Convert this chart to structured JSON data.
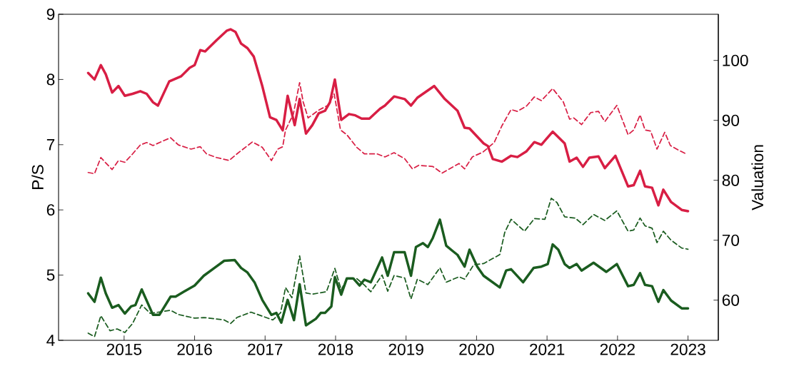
{
  "chart_data": {
    "type": "line",
    "ylabel": "P/S",
    "y2label": "Valuation",
    "xlim": [
      2014.07,
      2023.43
    ],
    "xticks": [
      2015,
      2016,
      2017,
      2018,
      2019,
      2020,
      2021,
      2022,
      2023
    ],
    "ylim": [
      4,
      9
    ],
    "yticks": [
      4,
      5,
      6,
      7,
      8,
      9
    ],
    "y2lim": [
      53.3,
      107.7
    ],
    "y2ticks": [
      60,
      70,
      80,
      90,
      100
    ],
    "series": [
      {
        "color": "#d81e44",
        "line_style": "solid",
        "axis": "y",
        "x": [
          2014.49,
          2014.58,
          2014.67,
          2014.74,
          2014.83,
          2014.92,
          2015.01,
          2015.12,
          2015.23,
          2015.32,
          2015.41,
          2015.48,
          2015.64,
          2015.81,
          2015.93,
          2016.0,
          2016.08,
          2016.15,
          2016.31,
          2016.46,
          2016.51,
          2016.58,
          2016.66,
          2016.75,
          2016.84,
          2016.96,
          2017.07,
          2017.16,
          2017.25,
          2017.32,
          2017.42,
          2017.49,
          2017.58,
          2017.67,
          2017.76,
          2017.85,
          2017.92,
          2017.99,
          2018.08,
          2018.19,
          2018.28,
          2018.37,
          2018.48,
          2018.63,
          2018.7,
          2018.83,
          2018.98,
          2019.07,
          2019.16,
          2019.4,
          2019.55,
          2019.73,
          2019.83,
          2019.9,
          2020.1,
          2020.16,
          2020.23,
          2020.36,
          2020.49,
          2020.58,
          2020.71,
          2020.82,
          2020.92,
          2021.08,
          2021.25,
          2021.32,
          2021.42,
          2021.51,
          2021.6,
          2021.73,
          2021.82,
          2021.97,
          2022.15,
          2022.23,
          2022.32,
          2022.39,
          2022.49,
          2022.58,
          2022.65,
          2022.76,
          2022.91,
          2023.0
        ],
        "values": [
          8.1,
          8.0,
          8.22,
          8.08,
          7.8,
          7.9,
          7.75,
          7.78,
          7.82,
          7.78,
          7.65,
          7.6,
          7.97,
          8.05,
          8.18,
          8.22,
          8.45,
          8.43,
          8.6,
          8.75,
          8.77,
          8.73,
          8.55,
          8.48,
          8.35,
          7.9,
          7.42,
          7.38,
          7.22,
          7.75,
          7.3,
          7.7,
          7.17,
          7.3,
          7.48,
          7.52,
          7.65,
          8.0,
          7.38,
          7.47,
          7.45,
          7.4,
          7.4,
          7.55,
          7.6,
          7.74,
          7.7,
          7.6,
          7.72,
          7.9,
          7.7,
          7.52,
          7.26,
          7.25,
          7.02,
          6.98,
          6.78,
          6.74,
          6.83,
          6.81,
          6.9,
          7.04,
          7.0,
          7.2,
          7.02,
          6.74,
          6.8,
          6.66,
          6.8,
          6.82,
          6.64,
          6.83,
          6.36,
          6.38,
          6.6,
          6.36,
          6.34,
          6.07,
          6.31,
          6.12,
          6.0,
          5.98
        ]
      },
      {
        "color": "#d81e44",
        "line_style": "dashed",
        "axis": "y2",
        "x": [
          2014.49,
          2014.58,
          2014.67,
          2014.74,
          2014.83,
          2014.92,
          2015.01,
          2015.12,
          2015.23,
          2015.32,
          2015.41,
          2015.52,
          2015.66,
          2015.77,
          2015.95,
          2016.08,
          2016.17,
          2016.31,
          2016.49,
          2016.6,
          2016.82,
          2016.96,
          2017.09,
          2017.18,
          2017.25,
          2017.29,
          2017.4,
          2017.49,
          2017.54,
          2017.61,
          2017.76,
          2017.89,
          2017.98,
          2018.07,
          2018.16,
          2018.3,
          2018.41,
          2018.59,
          2018.7,
          2018.83,
          2018.98,
          2019.09,
          2019.18,
          2019.38,
          2019.51,
          2019.75,
          2019.83,
          2019.94,
          2020.09,
          2020.25,
          2020.36,
          2020.49,
          2020.58,
          2020.71,
          2020.82,
          2020.92,
          2021.08,
          2021.23,
          2021.32,
          2021.38,
          2021.49,
          2021.62,
          2021.73,
          2021.82,
          2021.99,
          2022.15,
          2022.23,
          2022.32,
          2022.39,
          2022.47,
          2022.56,
          2022.67,
          2022.75,
          2022.87,
          2022.99
        ],
        "values": [
          81.3,
          81.1,
          83.8,
          82.9,
          81.8,
          83.3,
          83.0,
          84.4,
          85.9,
          86.3,
          85.8,
          86.4,
          87.1,
          85.9,
          85.2,
          85.6,
          84.4,
          83.8,
          83.3,
          84.4,
          86.4,
          85.5,
          83.3,
          85.2,
          85.6,
          88.4,
          91.0,
          96.3,
          93.1,
          90.4,
          91.7,
          92.5,
          94.4,
          88.4,
          87.6,
          85.5,
          84.4,
          84.4,
          83.9,
          84.6,
          83.6,
          81.9,
          82.5,
          82.3,
          81.2,
          82.8,
          81.9,
          83.9,
          84.7,
          86.3,
          89.1,
          91.8,
          91.5,
          92.4,
          93.9,
          93.3,
          95.3,
          93.1,
          90.2,
          90.4,
          89.3,
          91.3,
          91.5,
          89.8,
          92.5,
          87.6,
          88.4,
          90.9,
          88.4,
          88.2,
          85.2,
          88.0,
          85.8,
          85.0,
          84.3
        ]
      },
      {
        "color": "#1a5c1f",
        "line_style": "solid",
        "axis": "y",
        "x": [
          2014.49,
          2014.58,
          2014.67,
          2014.74,
          2014.83,
          2014.92,
          2015.01,
          2015.1,
          2015.16,
          2015.25,
          2015.41,
          2015.5,
          2015.66,
          2015.73,
          2015.84,
          2016.0,
          2016.13,
          2016.28,
          2016.42,
          2016.57,
          2016.66,
          2016.75,
          2016.85,
          2016.96,
          2017.09,
          2017.16,
          2017.23,
          2017.32,
          2017.41,
          2017.49,
          2017.58,
          2017.72,
          2017.79,
          2017.85,
          2017.94,
          2017.99,
          2018.08,
          2018.16,
          2018.25,
          2018.34,
          2018.41,
          2018.5,
          2018.66,
          2018.74,
          2018.83,
          2018.98,
          2019.07,
          2019.14,
          2019.24,
          2019.31,
          2019.38,
          2019.48,
          2019.57,
          2019.66,
          2019.73,
          2019.83,
          2019.9,
          2020.01,
          2020.1,
          2020.33,
          2020.42,
          2020.49,
          2020.66,
          2020.81,
          2020.92,
          2021.01,
          2021.08,
          2021.16,
          2021.25,
          2021.32,
          2021.42,
          2021.49,
          2021.66,
          2021.84,
          2021.99,
          2022.15,
          2022.23,
          2022.32,
          2022.39,
          2022.49,
          2022.58,
          2022.65,
          2022.76,
          2022.91,
          2023.0
        ],
        "values": [
          4.72,
          4.59,
          4.96,
          4.72,
          4.5,
          4.54,
          4.41,
          4.52,
          4.54,
          4.78,
          4.39,
          4.39,
          4.67,
          4.67,
          4.74,
          4.84,
          4.99,
          5.11,
          5.22,
          5.23,
          5.11,
          5.04,
          4.89,
          4.62,
          4.39,
          4.42,
          4.27,
          4.62,
          4.31,
          4.86,
          4.23,
          4.33,
          4.42,
          4.42,
          4.52,
          4.97,
          4.7,
          4.95,
          4.95,
          4.84,
          4.93,
          4.89,
          5.27,
          4.99,
          5.35,
          5.35,
          4.99,
          5.43,
          5.49,
          5.43,
          5.57,
          5.85,
          5.45,
          5.37,
          5.31,
          5.13,
          5.39,
          5.13,
          4.99,
          4.81,
          5.07,
          5.09,
          4.89,
          5.11,
          5.13,
          5.17,
          5.47,
          5.39,
          5.17,
          5.11,
          5.17,
          5.07,
          5.19,
          5.05,
          5.17,
          4.83,
          4.85,
          5.03,
          4.85,
          4.83,
          4.59,
          4.77,
          4.61,
          4.49,
          4.49
        ]
      },
      {
        "color": "#1a5c1f",
        "line_style": "dashed",
        "axis": "y2",
        "x": [
          2014.49,
          2014.58,
          2014.67,
          2014.8,
          2014.9,
          2015.01,
          2015.12,
          2015.25,
          2015.37,
          2015.66,
          2015.77,
          2016.0,
          2016.13,
          2016.42,
          2016.51,
          2016.6,
          2016.8,
          2017.11,
          2017.22,
          2017.29,
          2017.38,
          2017.49,
          2017.58,
          2017.67,
          2017.87,
          2017.99,
          2018.08,
          2018.16,
          2018.3,
          2018.41,
          2018.5,
          2018.66,
          2018.74,
          2018.83,
          2018.98,
          2019.07,
          2019.16,
          2019.31,
          2019.48,
          2019.57,
          2019.75,
          2019.83,
          2019.96,
          2020.1,
          2020.33,
          2020.4,
          2020.49,
          2020.68,
          2020.82,
          2020.97,
          2021.06,
          2021.14,
          2021.25,
          2021.4,
          2021.51,
          2021.66,
          2021.82,
          2021.99,
          2022.15,
          2022.23,
          2022.32,
          2022.39,
          2022.49,
          2022.56,
          2022.65,
          2022.76,
          2022.91,
          2023.0
        ],
        "values": [
          54.5,
          53.9,
          57.4,
          54.9,
          55.2,
          54.6,
          56.1,
          59.2,
          57.8,
          58.3,
          57.6,
          57.0,
          57.1,
          56.7,
          56.1,
          57.1,
          58.0,
          56.7,
          57.9,
          62.1,
          60.4,
          67.4,
          61.2,
          61.0,
          61.4,
          65.3,
          61.7,
          63.6,
          63.6,
          62.5,
          61.4,
          64.2,
          61.5,
          64.1,
          63.7,
          60.2,
          63.5,
          62.6,
          65.4,
          63.0,
          63.9,
          63.5,
          65.9,
          66.1,
          67.6,
          71.3,
          73.5,
          71.5,
          73.6,
          73.5,
          77.0,
          76.3,
          73.9,
          73.7,
          72.6,
          74.3,
          73.3,
          74.9,
          71.5,
          71.7,
          73.7,
          72.4,
          72.0,
          69.6,
          71.5,
          70.0,
          68.7,
          68.5
        ]
      }
    ]
  }
}
